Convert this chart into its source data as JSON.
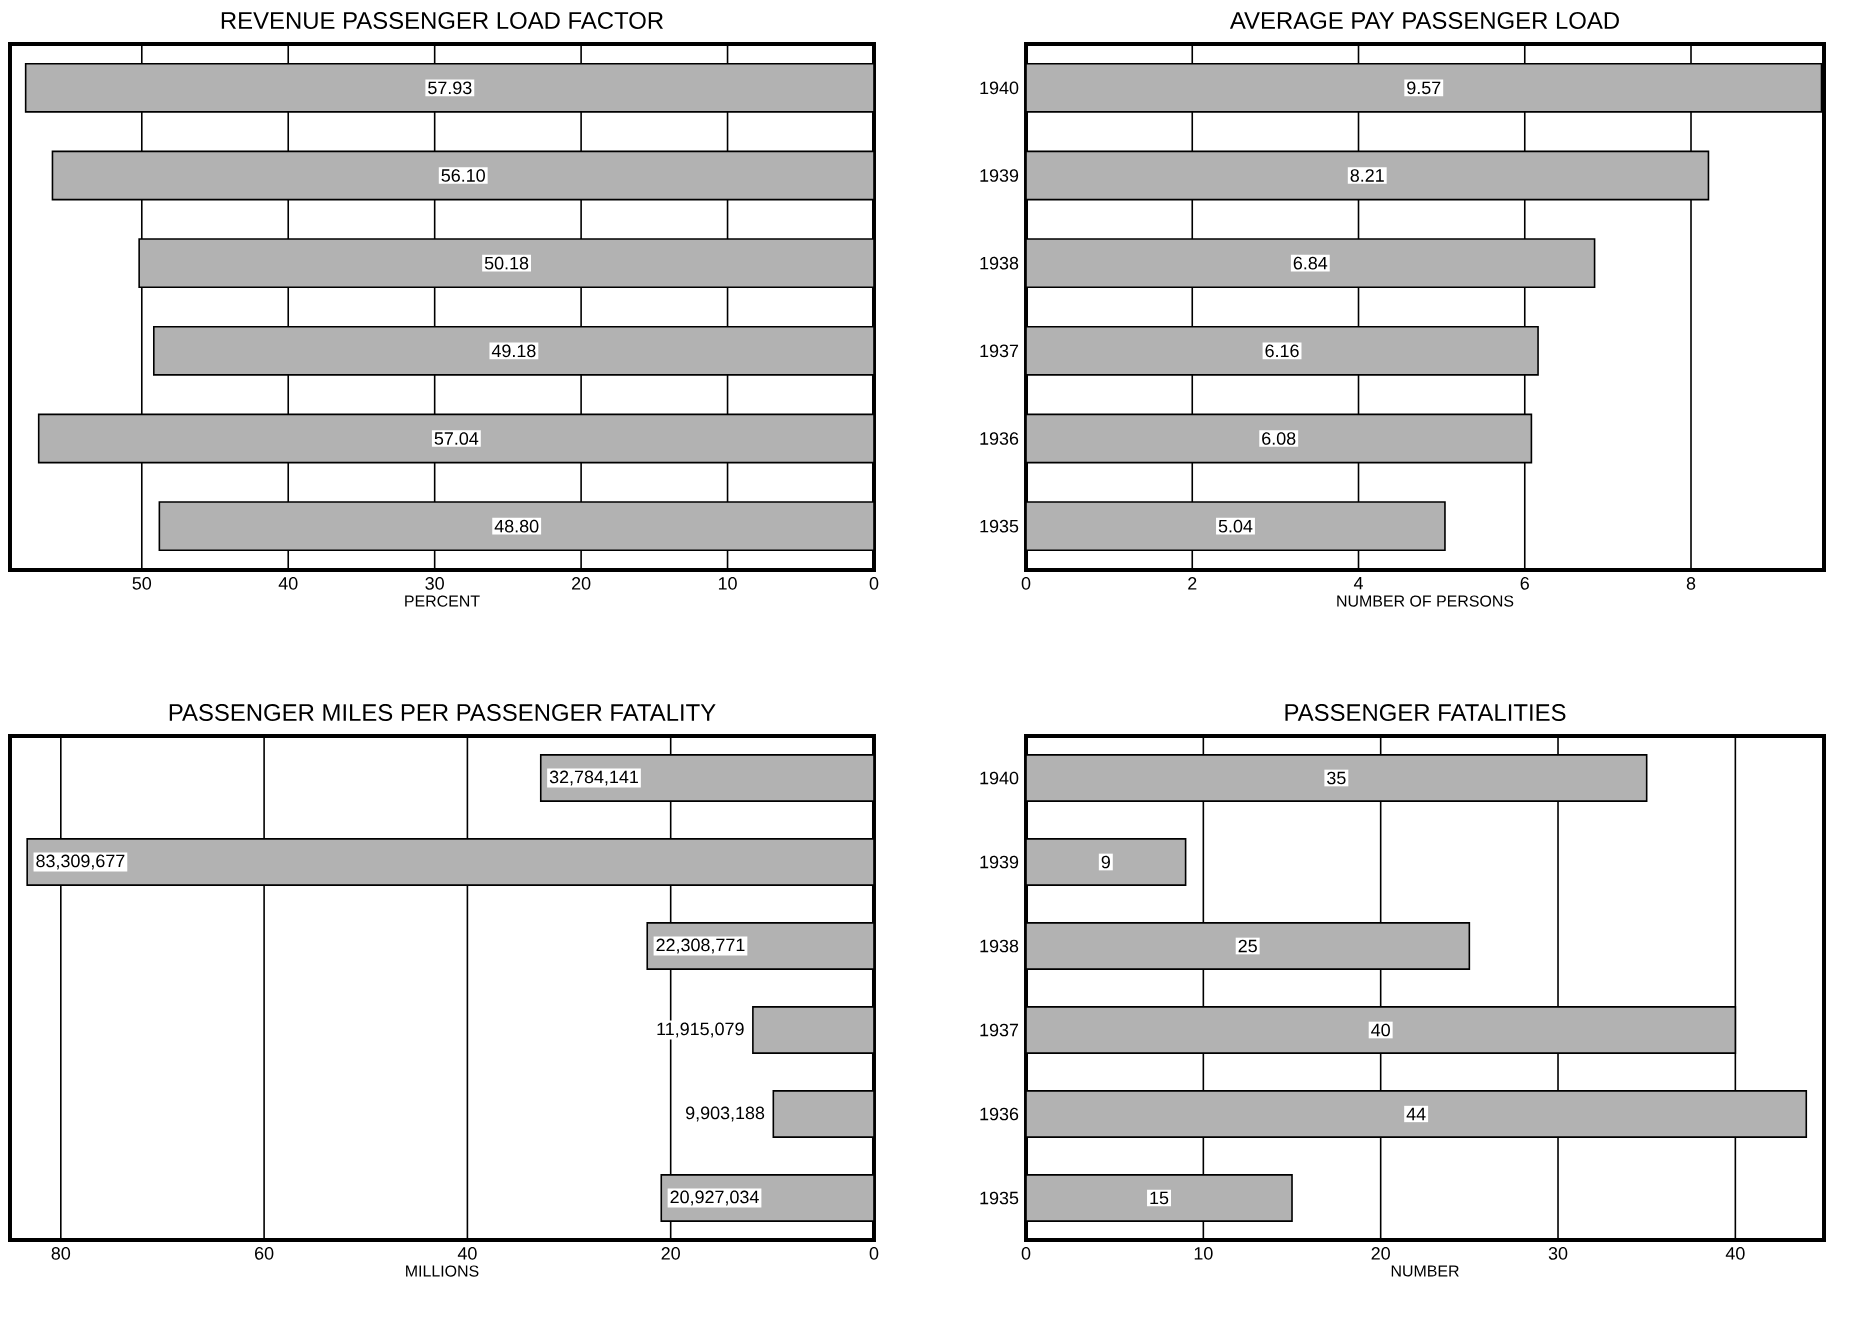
{
  "chart_data": [
    {
      "type": "bar",
      "orientation": "horizontal",
      "title": "REVENUE PASSENGER LOAD FACTOR",
      "xlabel": "PERCENT",
      "categories": [
        "1940",
        "1939",
        "1938",
        "1937",
        "1936",
        "1935"
      ],
      "values": [
        57.93,
        56.1,
        50.18,
        49.18,
        57.04,
        48.8
      ],
      "value_labels": [
        "57.93",
        "56.10",
        "50.18",
        "49.18",
        "57.04",
        "48.80"
      ],
      "color": "#b2b2b2",
      "xlim": [
        59,
        0
      ],
      "xticks": [
        50,
        40,
        30,
        20,
        10,
        0
      ],
      "grid": "x",
      "tick_labels": "x"
    },
    {
      "type": "bar",
      "orientation": "horizontal",
      "title": "AVERAGE PAY PASSENGER LOAD",
      "xlabel": "NUMBER OF PERSONS",
      "categories": [
        "1940",
        "1939",
        "1938",
        "1937",
        "1936",
        "1935"
      ],
      "values": [
        9.57,
        8.21,
        6.84,
        6.16,
        6.08,
        5.04
      ],
      "value_labels": [
        "9.57",
        "8.21",
        "6.84",
        "6.16",
        "6.08",
        "5.04"
      ],
      "color": "#b2b2b2",
      "xlim": [
        0,
        9.6
      ],
      "xticks": [
        0,
        2,
        4,
        6,
        8
      ],
      "grid": "x"
    },
    {
      "type": "bar",
      "orientation": "horizontal",
      "title": "PASSENGER MILES PER PASSENGER FATALITY",
      "xlabel": "MILLIONS",
      "categories": [
        "1940",
        "1939",
        "1938",
        "1937",
        "1936",
        "1935"
      ],
      "values": [
        32.784141,
        83.309677,
        22.308771,
        11.915079,
        9.903188,
        20.927034
      ],
      "annotations": [
        {
          "text": "32,784,141",
          "x": 32.784141,
          "y": "1940"
        },
        {
          "text": "83,309,677",
          "x": 83.309677,
          "y": "1939"
        },
        {
          "text": "22,308,771",
          "x": 22.308771,
          "y": "1938"
        },
        {
          "text": "11,915,079",
          "x": 11.915079,
          "y": "1937"
        },
        {
          "text": "9,903,188",
          "x": 9.903188,
          "y": "1936"
        },
        {
          "text": "20,927,034",
          "x": 20.927034,
          "y": "1935"
        }
      ],
      "color": "#b2b2b2",
      "xlim": [
        85,
        0
      ],
      "xticks": [
        80,
        60,
        40,
        20,
        0
      ],
      "grid": "x",
      "tick_labels": "x"
    },
    {
      "type": "bar",
      "orientation": "horizontal",
      "title": "PASSENGER FATALITIES",
      "xlabel": "NUMBER",
      "categories": [
        "1940",
        "1939",
        "1938",
        "1937",
        "1936",
        "1935"
      ],
      "values": [
        35,
        9,
        25,
        40,
        44,
        15
      ],
      "value_labels": [
        "35",
        "9",
        "25",
        "40",
        "44",
        "15"
      ],
      "color": "#b2b2b2",
      "xlim": [
        0,
        45
      ],
      "xticks": [
        0,
        10,
        20,
        30,
        40
      ],
      "grid": "x"
    }
  ]
}
